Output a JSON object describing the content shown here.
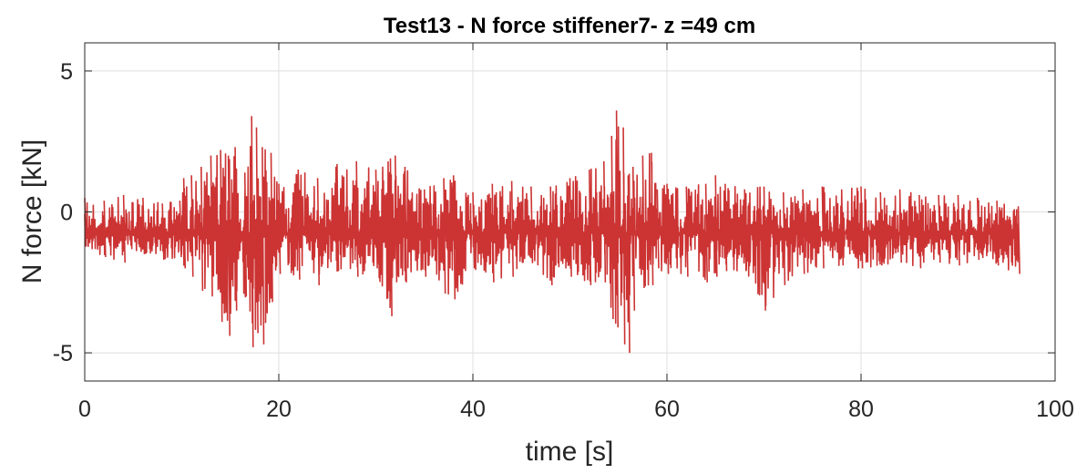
{
  "chart_data": {
    "type": "line",
    "title": "Test13 - N force stiffener7- z =49 cm",
    "xlabel": "time [s]",
    "ylabel": "N force [kN]",
    "xlim": [
      0,
      100
    ],
    "ylim": [
      -6,
      6
    ],
    "xticks": [
      0,
      20,
      40,
      60,
      80,
      100
    ],
    "xtick_labels": [
      "0",
      "20",
      "40",
      "60",
      "80",
      "100"
    ],
    "yticks": [
      -5,
      0,
      5
    ],
    "ytick_labels": [
      "-5",
      "0",
      "5"
    ],
    "grid": true,
    "series_color": "#cc3333",
    "series": [
      {
        "x": [
          0,
          2,
          4,
          6,
          8,
          9.8,
          10.2,
          11,
          12,
          13,
          14,
          14.8,
          15.5,
          16.5,
          17.2,
          17.7,
          18.3,
          19.2,
          20,
          22,
          24,
          26,
          28,
          30,
          31.5,
          32,
          33,
          35,
          37,
          38,
          40,
          42,
          44,
          46,
          48,
          50,
          52,
          53.5,
          54.3,
          54.8,
          55.5,
          56,
          56.5,
          57.5,
          58.4,
          59,
          60,
          62,
          64,
          65,
          66,
          68,
          70,
          72,
          74,
          76,
          78,
          80,
          82,
          84,
          86,
          88,
          90,
          92,
          94,
          96.2
        ],
        "y_max": [
          0.5,
          0.4,
          0.6,
          0.5,
          0.3,
          0.4,
          1.2,
          1.3,
          1.6,
          2.0,
          2.2,
          2.0,
          2.3,
          1.4,
          3.4,
          3.0,
          2.3,
          2.1,
          1.0,
          1.5,
          1.2,
          1.7,
          1.8,
          1.5,
          1.9,
          2.0,
          1.6,
          0.8,
          1.2,
          1.3,
          0.7,
          1.0,
          1.1,
          0.9,
          0.9,
          1.2,
          1.5,
          1.8,
          2.7,
          3.6,
          3.0,
          1.3,
          1.6,
          2.0,
          2.1,
          0.8,
          1.0,
          0.9,
          1.0,
          1.3,
          1.0,
          0.8,
          0.9,
          0.7,
          0.8,
          0.9,
          0.8,
          0.9,
          0.7,
          0.8,
          0.6,
          0.6,
          0.6,
          0.5,
          0.4,
          0.2
        ],
        "y_min": [
          -1.2,
          -1.6,
          -1.8,
          -1.5,
          -1.7,
          -1.6,
          -2.0,
          -2.3,
          -2.8,
          -3.0,
          -3.9,
          -4.4,
          -3.5,
          -3.0,
          -4.8,
          -4.3,
          -4.7,
          -3.2,
          -2.2,
          -2.4,
          -2.6,
          -2.1,
          -2.3,
          -2.0,
          -3.7,
          -2.5,
          -2.5,
          -2.3,
          -2.9,
          -3.1,
          -2.0,
          -2.5,
          -2.3,
          -1.8,
          -2.6,
          -2.3,
          -2.6,
          -2.5,
          -3.8,
          -4.1,
          -4.7,
          -5.0,
          -3.5,
          -2.7,
          -2.6,
          -2.0,
          -2.2,
          -2.3,
          -2.5,
          -2.3,
          -2.1,
          -2.1,
          -3.5,
          -2.6,
          -2.2,
          -2.0,
          -1.9,
          -2.0,
          -1.9,
          -1.8,
          -2.0,
          -1.8,
          -1.9,
          -1.7,
          -1.9,
          -2.2
        ],
        "y_mean": -0.75
      }
    ]
  }
}
